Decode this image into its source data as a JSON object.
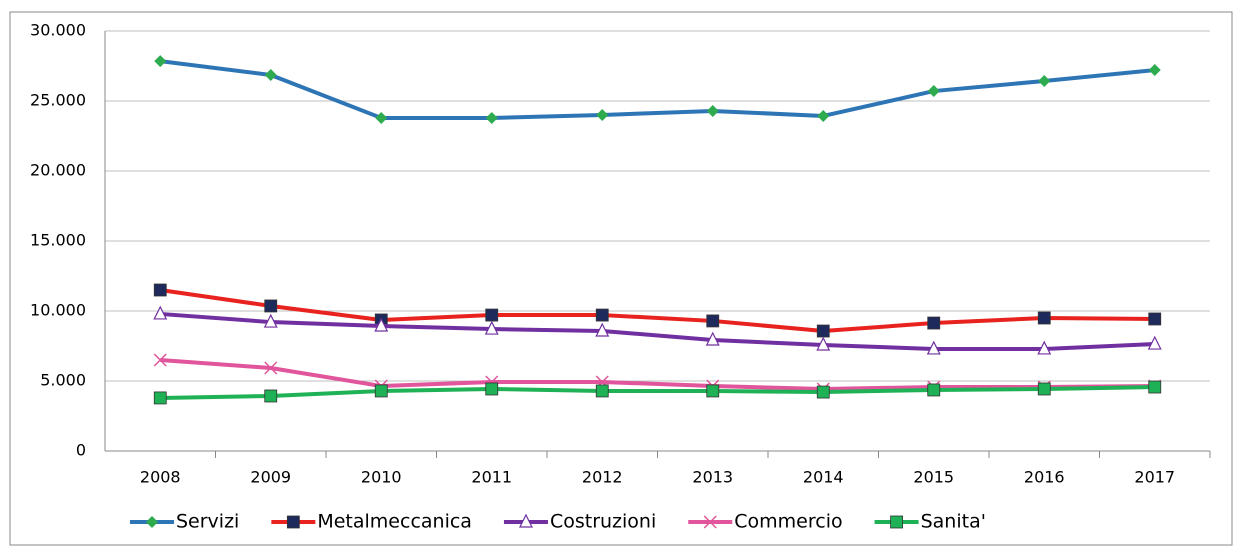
{
  "chart_data": {
    "type": "line",
    "categories": [
      "2008",
      "2009",
      "2010",
      "2011",
      "2012",
      "2013",
      "2014",
      "2015",
      "2016",
      "2017"
    ],
    "series": [
      {
        "name": "Servizi",
        "color": "#2e75b6",
        "marker": "diamond",
        "marker_color": "#2eab4f",
        "values": [
          27850,
          26860,
          23790,
          23790,
          24000,
          24290,
          23930,
          25710,
          26430,
          27210
        ]
      },
      {
        "name": "Metalmeccanica",
        "color": "#e8231f",
        "marker": "square",
        "marker_color": "#1f2a5c",
        "values": [
          11500,
          10360,
          9360,
          9710,
          9710,
          9290,
          8570,
          9140,
          9500,
          9430
        ]
      },
      {
        "name": "Costruzioni",
        "color": "#7030a0",
        "marker": "triangle",
        "marker_color": "#ffffff",
        "values": [
          9790,
          9210,
          8930,
          8710,
          8570,
          7930,
          7570,
          7290,
          7290,
          7640
        ]
      },
      {
        "name": "Commercio",
        "color": "#e0559b",
        "marker": "x",
        "marker_color": "#e0559b",
        "values": [
          6500,
          5930,
          4640,
          4930,
          4930,
          4640,
          4430,
          4570,
          4570,
          4640
        ]
      },
      {
        "name": "Sanita'",
        "color": "#1fb155",
        "marker": "square",
        "marker_color": "#1fb155",
        "values": [
          3790,
          3930,
          4290,
          4430,
          4290,
          4290,
          4210,
          4360,
          4430,
          4570
        ]
      }
    ],
    "ylim": [
      0,
      30000
    ],
    "yticks": [
      0,
      {
        "value": 5000,
        "label": "5.000"
      },
      {
        "value": 10000,
        "label": "10.000"
      },
      {
        "value": 15000,
        "label": "15.000"
      },
      {
        "value": 20000,
        "label": "20.000"
      },
      {
        "value": 25000,
        "label": "25.000"
      },
      {
        "value": 30000,
        "label": "30.000"
      }
    ],
    "grid": true,
    "legend": "bottom"
  }
}
